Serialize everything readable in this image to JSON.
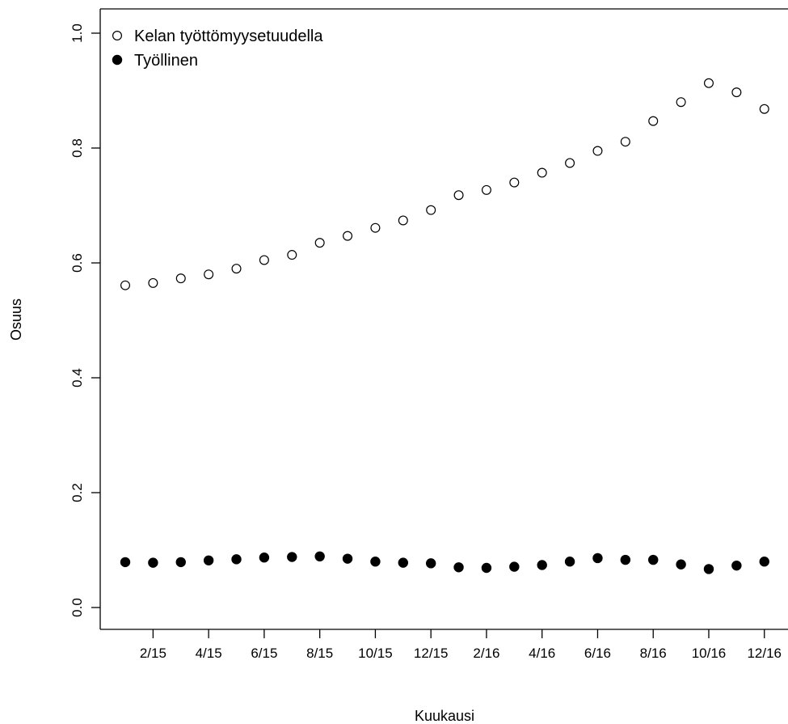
{
  "chart_data": {
    "type": "scatter",
    "title": "",
    "xlabel": "Kuukausi",
    "ylabel": "Osuus",
    "ylim": [
      0.0,
      1.0
    ],
    "y_ticks": [
      "0.0",
      "0.2",
      "0.4",
      "0.6",
      "0.8",
      "1.0"
    ],
    "x_tick_labels": [
      "2/15",
      "4/15",
      "6/15",
      "8/15",
      "10/15",
      "12/15",
      "2/16",
      "4/16",
      "6/16",
      "8/16",
      "10/16",
      "12/16"
    ],
    "x_tick_positions": [
      2,
      4,
      6,
      8,
      10,
      12,
      14,
      16,
      18,
      20,
      22,
      24
    ],
    "x": [
      1,
      2,
      3,
      4,
      5,
      6,
      7,
      8,
      9,
      10,
      11,
      12,
      13,
      14,
      15,
      16,
      17,
      18,
      19,
      20,
      21,
      22,
      23,
      24
    ],
    "legend_position": "top-left",
    "series": [
      {
        "name": "Kelan työttömyysetuudella",
        "marker": "open-circle",
        "color": "#000000",
        "values": [
          0.561,
          0.565,
          0.573,
          0.58,
          0.59,
          0.605,
          0.614,
          0.635,
          0.647,
          0.661,
          0.674,
          0.692,
          0.718,
          0.727,
          0.74,
          0.757,
          0.774,
          0.795,
          0.811,
          0.847,
          0.88,
          0.913,
          0.897,
          0.868
        ]
      },
      {
        "name": "Työllinen",
        "marker": "filled-circle",
        "color": "#000000",
        "values": [
          0.079,
          0.078,
          0.079,
          0.082,
          0.084,
          0.087,
          0.088,
          0.089,
          0.085,
          0.08,
          0.078,
          0.077,
          0.07,
          0.069,
          0.071,
          0.074,
          0.08,
          0.086,
          0.083,
          0.083,
          0.075,
          0.067,
          0.073,
          0.08
        ]
      }
    ]
  }
}
